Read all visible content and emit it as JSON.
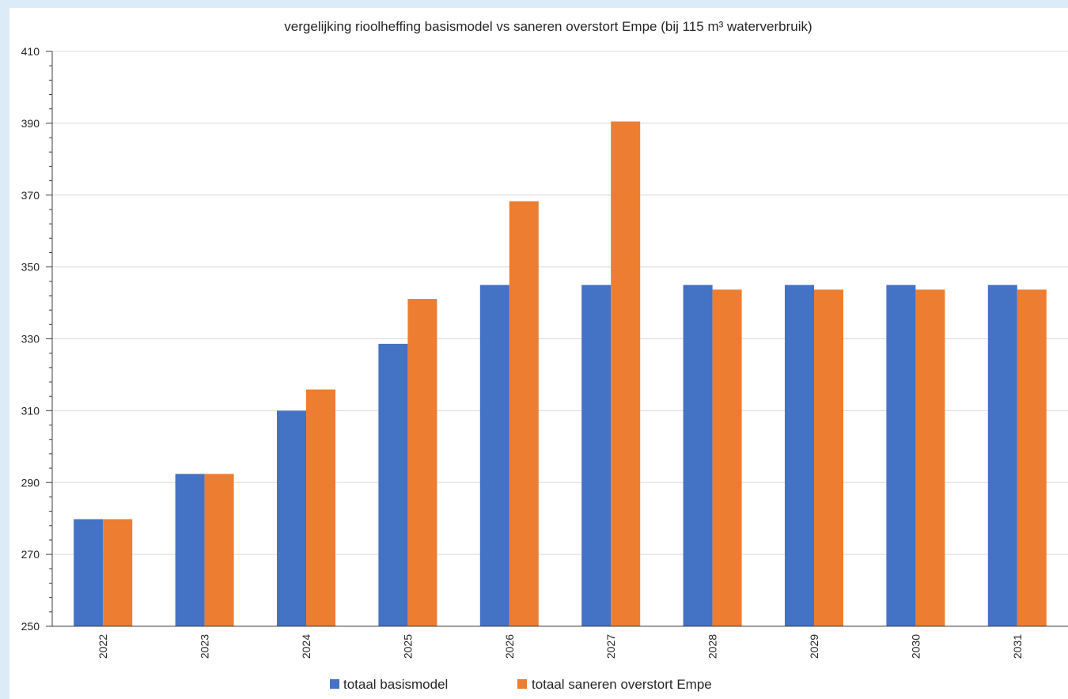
{
  "chart_data": {
    "type": "bar",
    "title": "vergelijking rioolheffing basismodel vs saneren overstort Empe (bij 115 m³ waterverbruik)",
    "xlabel": "",
    "ylabel": "",
    "categories": [
      "2022",
      "2023",
      "2024",
      "2025",
      "2026",
      "2027",
      "2028",
      "2029",
      "2030",
      "2031"
    ],
    "ylim": [
      250,
      410
    ],
    "yticks": [
      250,
      270,
      290,
      310,
      330,
      350,
      370,
      390,
      410
    ],
    "grid": true,
    "legend_position": "bottom",
    "series": [
      {
        "name": "totaal basismodel",
        "color": "#4472c4",
        "values": [
          279.8,
          292.4,
          310.0,
          328.6,
          345.0,
          345.0,
          345.0,
          345.0,
          345.0,
          345.0
        ]
      },
      {
        "name": "totaal saneren overstort Empe",
        "color": "#ed7d31",
        "values": [
          279.8,
          292.4,
          315.9,
          341.1,
          368.3,
          390.5,
          343.7,
          343.7,
          343.7,
          343.7
        ]
      }
    ]
  }
}
